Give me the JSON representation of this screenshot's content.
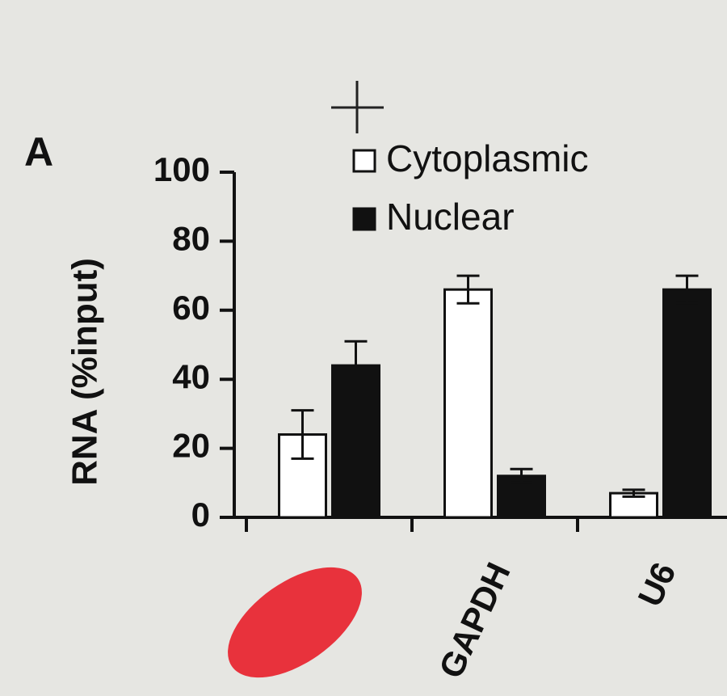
{
  "chart_data": {
    "type": "bar",
    "panel_label": "A",
    "y_label": "RNA (%input)",
    "categories": [
      null,
      "GAPDH",
      "U6"
    ],
    "series": [
      {
        "name": "Cytoplasmic",
        "color": "#ffffff",
        "values": [
          24,
          66,
          7
        ],
        "errors": [
          7,
          4,
          1
        ]
      },
      {
        "name": "Nuclear",
        "color": "#111111",
        "values": [
          44,
          12,
          66
        ],
        "errors": [
          7,
          2,
          4
        ]
      }
    ],
    "ylim": [
      0,
      100
    ],
    "yticks": [
      0,
      20,
      40,
      60,
      80,
      100
    ],
    "legend": "top-right"
  }
}
